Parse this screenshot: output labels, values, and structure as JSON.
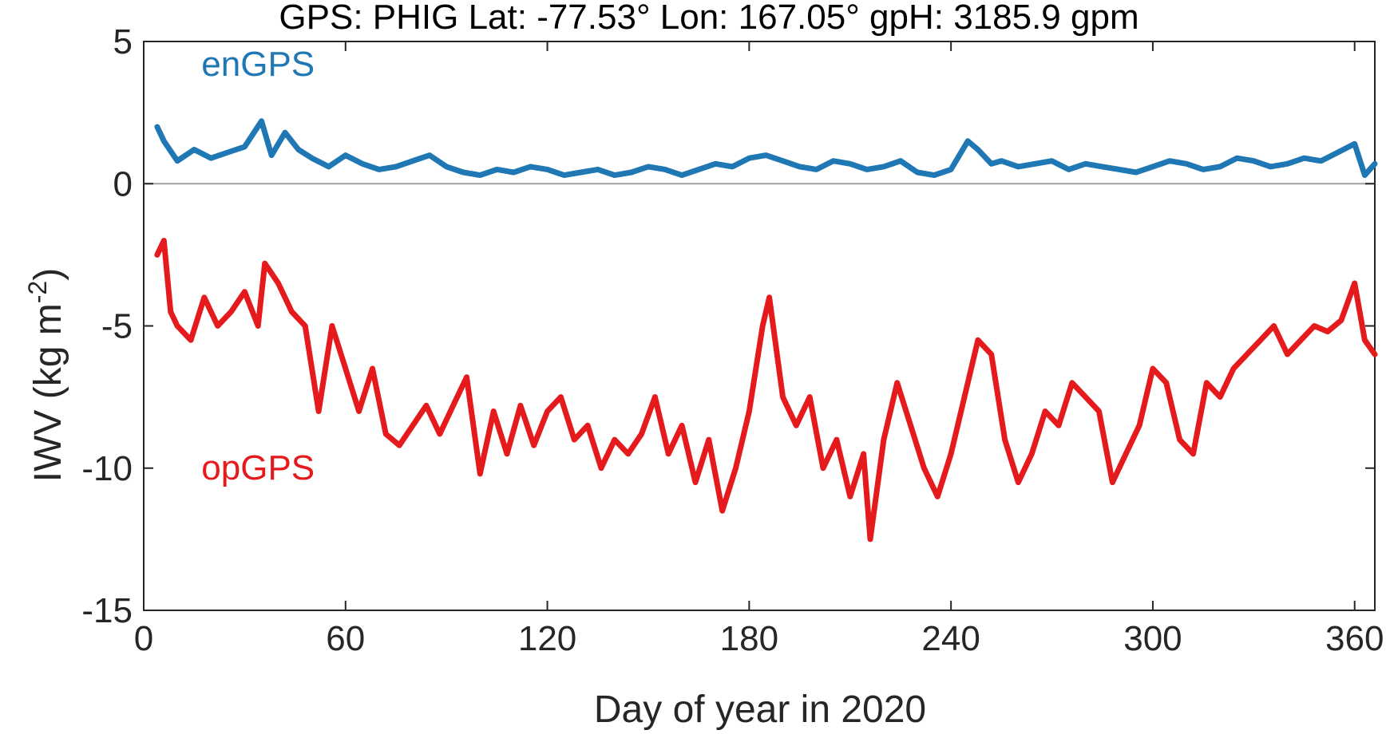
{
  "chart_data": {
    "type": "line",
    "title": "GPS: PHIG   Lat: -77.53°   Lon: 167.05°   gpH: 3185.9 gpm",
    "xlabel": "Day of year in 2020",
    "ylabel": "IWV (kg m",
    "ylabel_exponent": "-2",
    "ylabel_close": ")",
    "xlim": [
      0,
      366
    ],
    "ylim": [
      -15,
      5
    ],
    "xticks": [
      0,
      60,
      120,
      180,
      240,
      300,
      360
    ],
    "yticks": [
      5,
      0,
      -5,
      -10,
      -15
    ],
    "grid": false,
    "zero_line_color": "#a0a0a0",
    "series": [
      {
        "name": "enGPS",
        "color": "#1f77b4",
        "x": [
          4,
          6,
          10,
          15,
          20,
          25,
          30,
          35,
          38,
          42,
          46,
          50,
          55,
          60,
          65,
          70,
          75,
          80,
          85,
          90,
          95,
          100,
          105,
          110,
          115,
          120,
          125,
          130,
          135,
          140,
          145,
          150,
          155,
          160,
          165,
          170,
          175,
          180,
          185,
          190,
          195,
          200,
          205,
          210,
          215,
          220,
          225,
          230,
          235,
          240,
          245,
          248,
          252,
          255,
          260,
          265,
          270,
          275,
          280,
          285,
          290,
          295,
          300,
          305,
          310,
          315,
          320,
          325,
          330,
          335,
          340,
          345,
          350,
          355,
          360,
          363,
          366
        ],
        "y": [
          2.0,
          1.5,
          0.8,
          1.2,
          0.9,
          1.1,
          1.3,
          2.2,
          1.0,
          1.8,
          1.2,
          0.9,
          0.6,
          1.0,
          0.7,
          0.5,
          0.6,
          0.8,
          1.0,
          0.6,
          0.4,
          0.3,
          0.5,
          0.4,
          0.6,
          0.5,
          0.3,
          0.4,
          0.5,
          0.3,
          0.4,
          0.6,
          0.5,
          0.3,
          0.5,
          0.7,
          0.6,
          0.9,
          1.0,
          0.8,
          0.6,
          0.5,
          0.8,
          0.7,
          0.5,
          0.6,
          0.8,
          0.4,
          0.3,
          0.5,
          1.5,
          1.2,
          0.7,
          0.8,
          0.6,
          0.7,
          0.8,
          0.5,
          0.7,
          0.6,
          0.5,
          0.4,
          0.6,
          0.8,
          0.7,
          0.5,
          0.6,
          0.9,
          0.8,
          0.6,
          0.7,
          0.9,
          0.8,
          1.1,
          1.4,
          0.3,
          0.7
        ]
      },
      {
        "name": "opGPS",
        "color": "#e41a1c",
        "x": [
          4,
          6,
          8,
          10,
          14,
          18,
          22,
          26,
          30,
          34,
          36,
          40,
          44,
          48,
          52,
          56,
          60,
          64,
          68,
          72,
          76,
          80,
          84,
          88,
          92,
          96,
          100,
          104,
          108,
          112,
          116,
          120,
          124,
          128,
          132,
          136,
          140,
          144,
          148,
          152,
          156,
          160,
          164,
          168,
          172,
          176,
          180,
          184,
          186,
          190,
          194,
          198,
          202,
          206,
          210,
          214,
          216,
          220,
          224,
          228,
          232,
          236,
          240,
          244,
          248,
          252,
          256,
          260,
          264,
          268,
          272,
          276,
          280,
          284,
          288,
          292,
          296,
          300,
          304,
          308,
          312,
          316,
          320,
          324,
          328,
          332,
          336,
          340,
          344,
          348,
          352,
          356,
          360,
          363,
          366
        ],
        "y": [
          -2.5,
          -2.0,
          -4.5,
          -5.0,
          -5.5,
          -4.0,
          -5.0,
          -4.5,
          -3.8,
          -5.0,
          -2.8,
          -3.5,
          -4.5,
          -5.0,
          -8.0,
          -5.0,
          -6.5,
          -8.0,
          -6.5,
          -8.8,
          -9.2,
          -8.5,
          -7.8,
          -8.8,
          -7.8,
          -6.8,
          -10.2,
          -8.0,
          -9.5,
          -7.8,
          -9.2,
          -8.0,
          -7.5,
          -9.0,
          -8.5,
          -10.0,
          -9.0,
          -9.5,
          -8.8,
          -7.5,
          -9.5,
          -8.5,
          -10.5,
          -9.0,
          -11.5,
          -10.0,
          -8.0,
          -5.0,
          -4.0,
          -7.5,
          -8.5,
          -7.5,
          -10.0,
          -9.0,
          -11.0,
          -9.5,
          -12.5,
          -9.0,
          -7.0,
          -8.5,
          -10.0,
          -11.0,
          -9.5,
          -7.5,
          -5.5,
          -6.0,
          -9.0,
          -10.5,
          -9.5,
          -8.0,
          -8.5,
          -7.0,
          -7.5,
          -8.0,
          -10.5,
          -9.5,
          -8.5,
          -6.5,
          -7.0,
          -9.0,
          -9.5,
          -7.0,
          -7.5,
          -6.5,
          -6.0,
          -5.5,
          -5.0,
          -6.0,
          -5.5,
          -5.0,
          -5.2,
          -4.8,
          -3.5,
          -5.5,
          -6.0
        ]
      }
    ]
  }
}
